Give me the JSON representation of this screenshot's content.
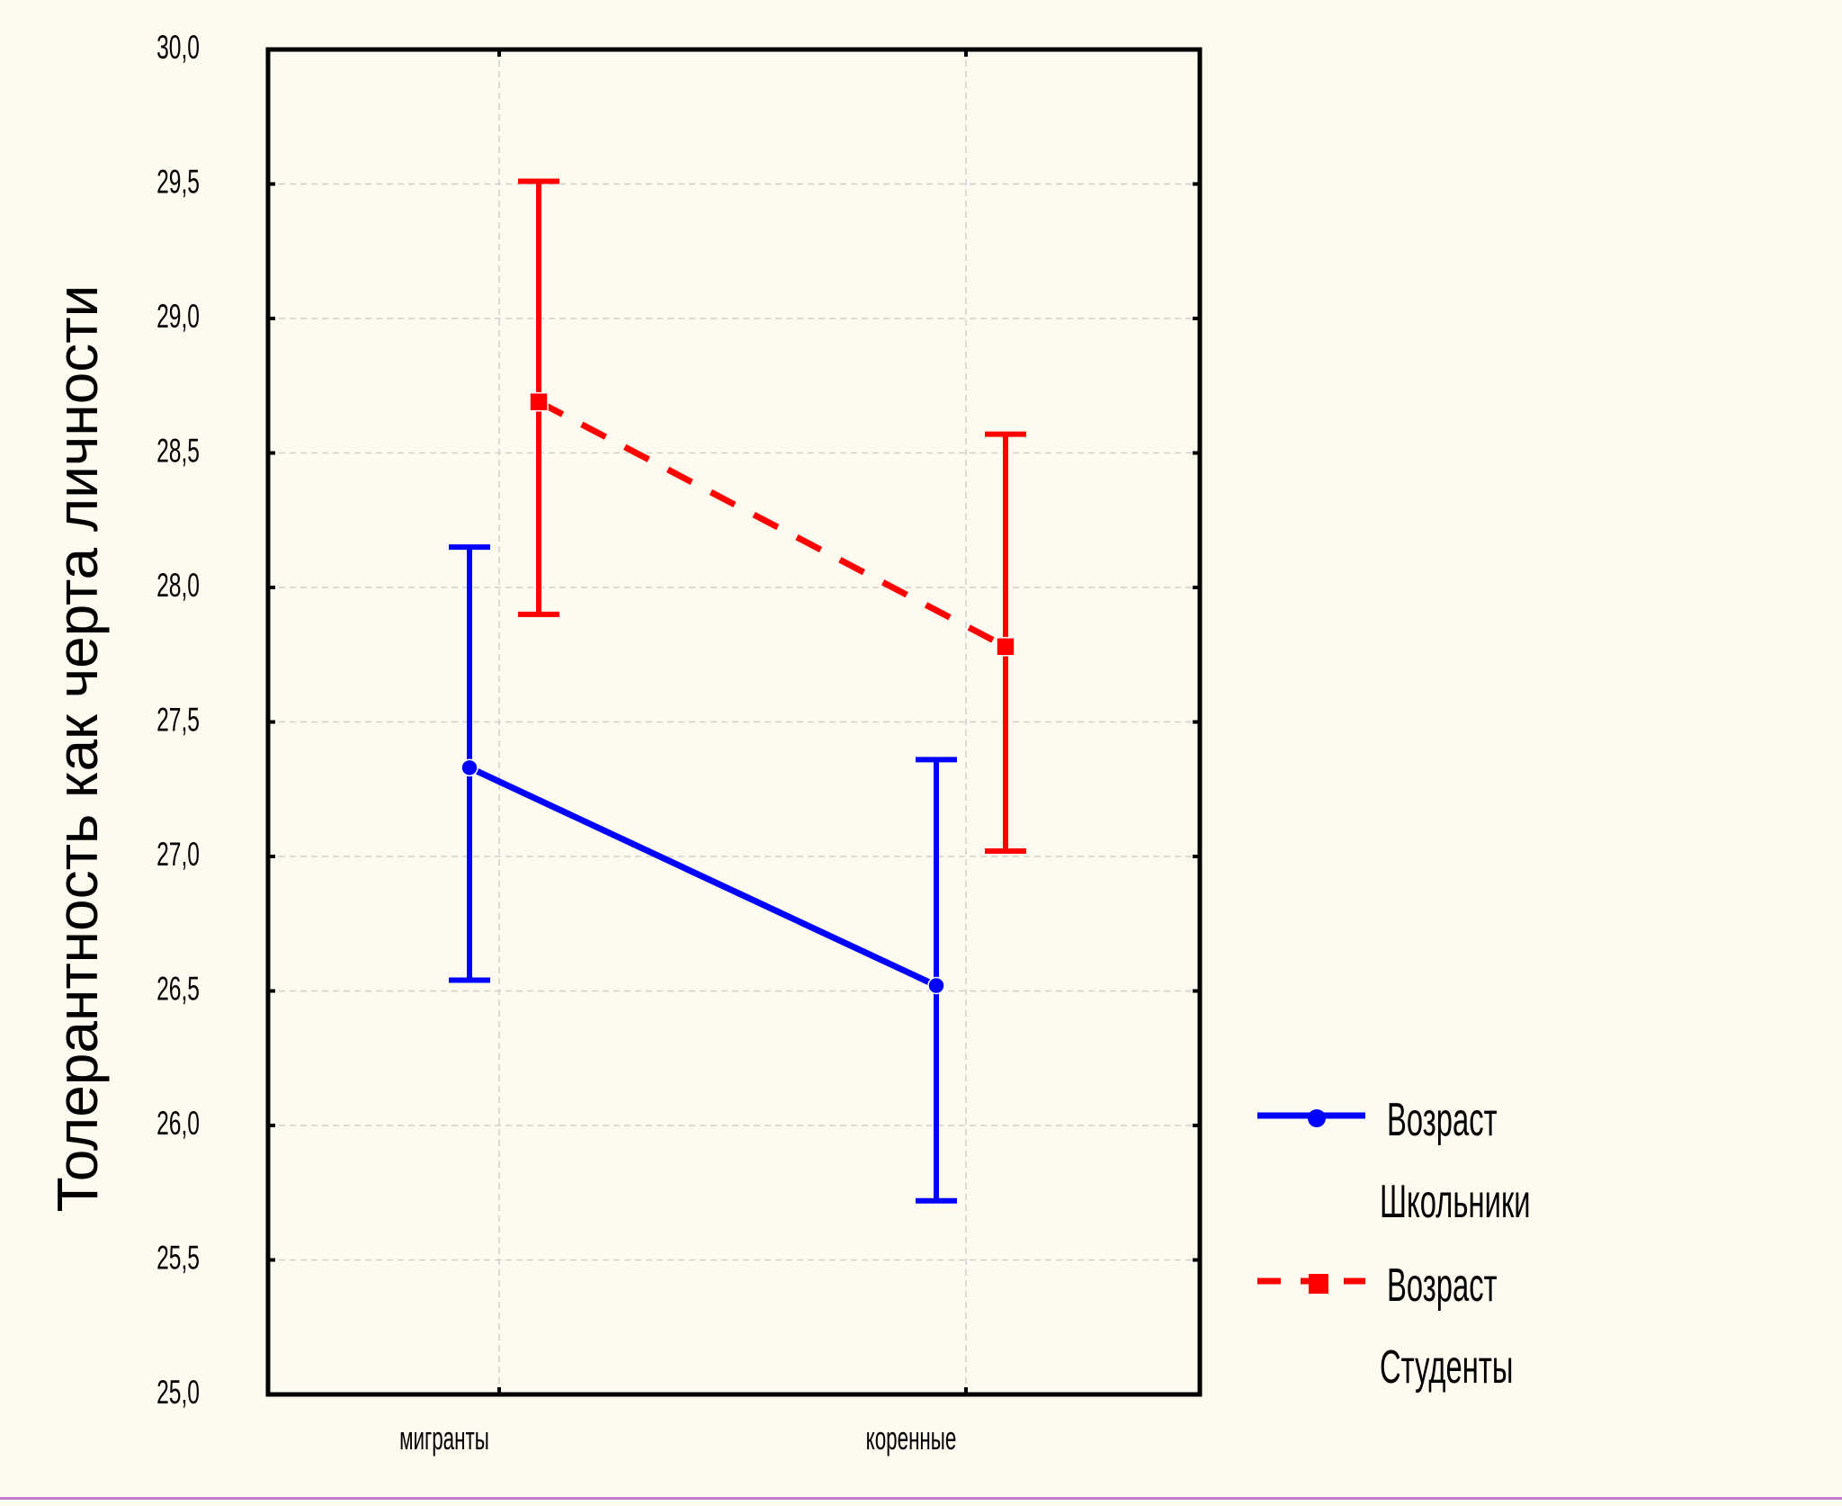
{
  "colors": {
    "background": "#fdfbef",
    "frame": "#000000",
    "grid": "#cfcfcf",
    "series_1": "#0000ff",
    "series_2": "#ff0000"
  },
  "chart_data": {
    "type": "line",
    "title": "",
    "xlabel": "",
    "ylabel": "Толерантность как черта личности",
    "categories": [
      "мигранты",
      "коренные"
    ],
    "ylim": [
      25.0,
      30.0
    ],
    "yticks": [
      25.0,
      25.5,
      26.0,
      26.5,
      27.0,
      27.5,
      28.0,
      28.5,
      29.0,
      29.5,
      30.0
    ],
    "ytick_labels": [
      "25,0",
      "25,5",
      "26,0",
      "26,5",
      "27,0",
      "27,5",
      "28,0",
      "28,5",
      "29,0",
      "29,5",
      "30,0"
    ],
    "grid": true,
    "error_bars": true,
    "legend_position": "right",
    "series": [
      {
        "legend_label": "Возраст",
        "name": "Школьники",
        "color": "#0000ff",
        "line_style": "solid",
        "marker": "circle",
        "values": [
          27.33,
          26.52
        ],
        "lower": [
          26.54,
          25.72
        ],
        "upper": [
          28.15,
          27.36
        ]
      },
      {
        "legend_label": "Возраст",
        "name": "Студенты",
        "color": "#ff0000",
        "line_style": "dashed",
        "marker": "square",
        "values": [
          28.69,
          27.78
        ],
        "lower": [
          27.9,
          27.02
        ],
        "upper": [
          29.51,
          28.57
        ]
      }
    ]
  }
}
